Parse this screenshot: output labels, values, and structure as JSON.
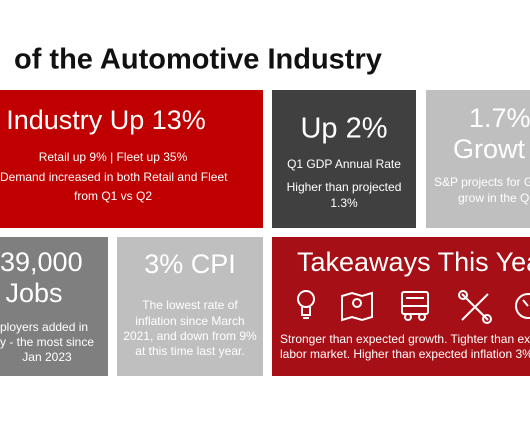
{
  "header": {
    "title": "of the Automotive Industry"
  },
  "tiles": [
    {
      "heading": "Industry Up 13%",
      "lines": [
        "Retail up 9% | Fleet up 35%",
        "Demand increased in both Retail and Fleet",
        "from Q1 vs Q2"
      ]
    },
    {
      "heading": "Up 2%",
      "lines": [
        "Q1 GDP Annual Rate",
        "Higher than projected",
        "1.3%"
      ]
    },
    {
      "heading": [
        "1.7%",
        "Growt"
      ],
      "lines": [
        "S&P projects for G",
        "grow in the Q"
      ]
    },
    {
      "heading": [
        "39,000",
        "Jobs"
      ],
      "lines": [
        "ployers added in",
        "y - the most since",
        "Jan 2023"
      ]
    },
    {
      "heading": "3% CPI",
      "lines": [
        "The lowest rate of",
        "inflation since March",
        "2021, and down from 9%",
        "at this time last year."
      ]
    },
    {
      "heading": "Takeaways This Yea",
      "lines": [
        "Stronger than expected growth. Tighter than exp",
        "labor market. Higher than expected inflation 3%."
      ]
    }
  ]
}
